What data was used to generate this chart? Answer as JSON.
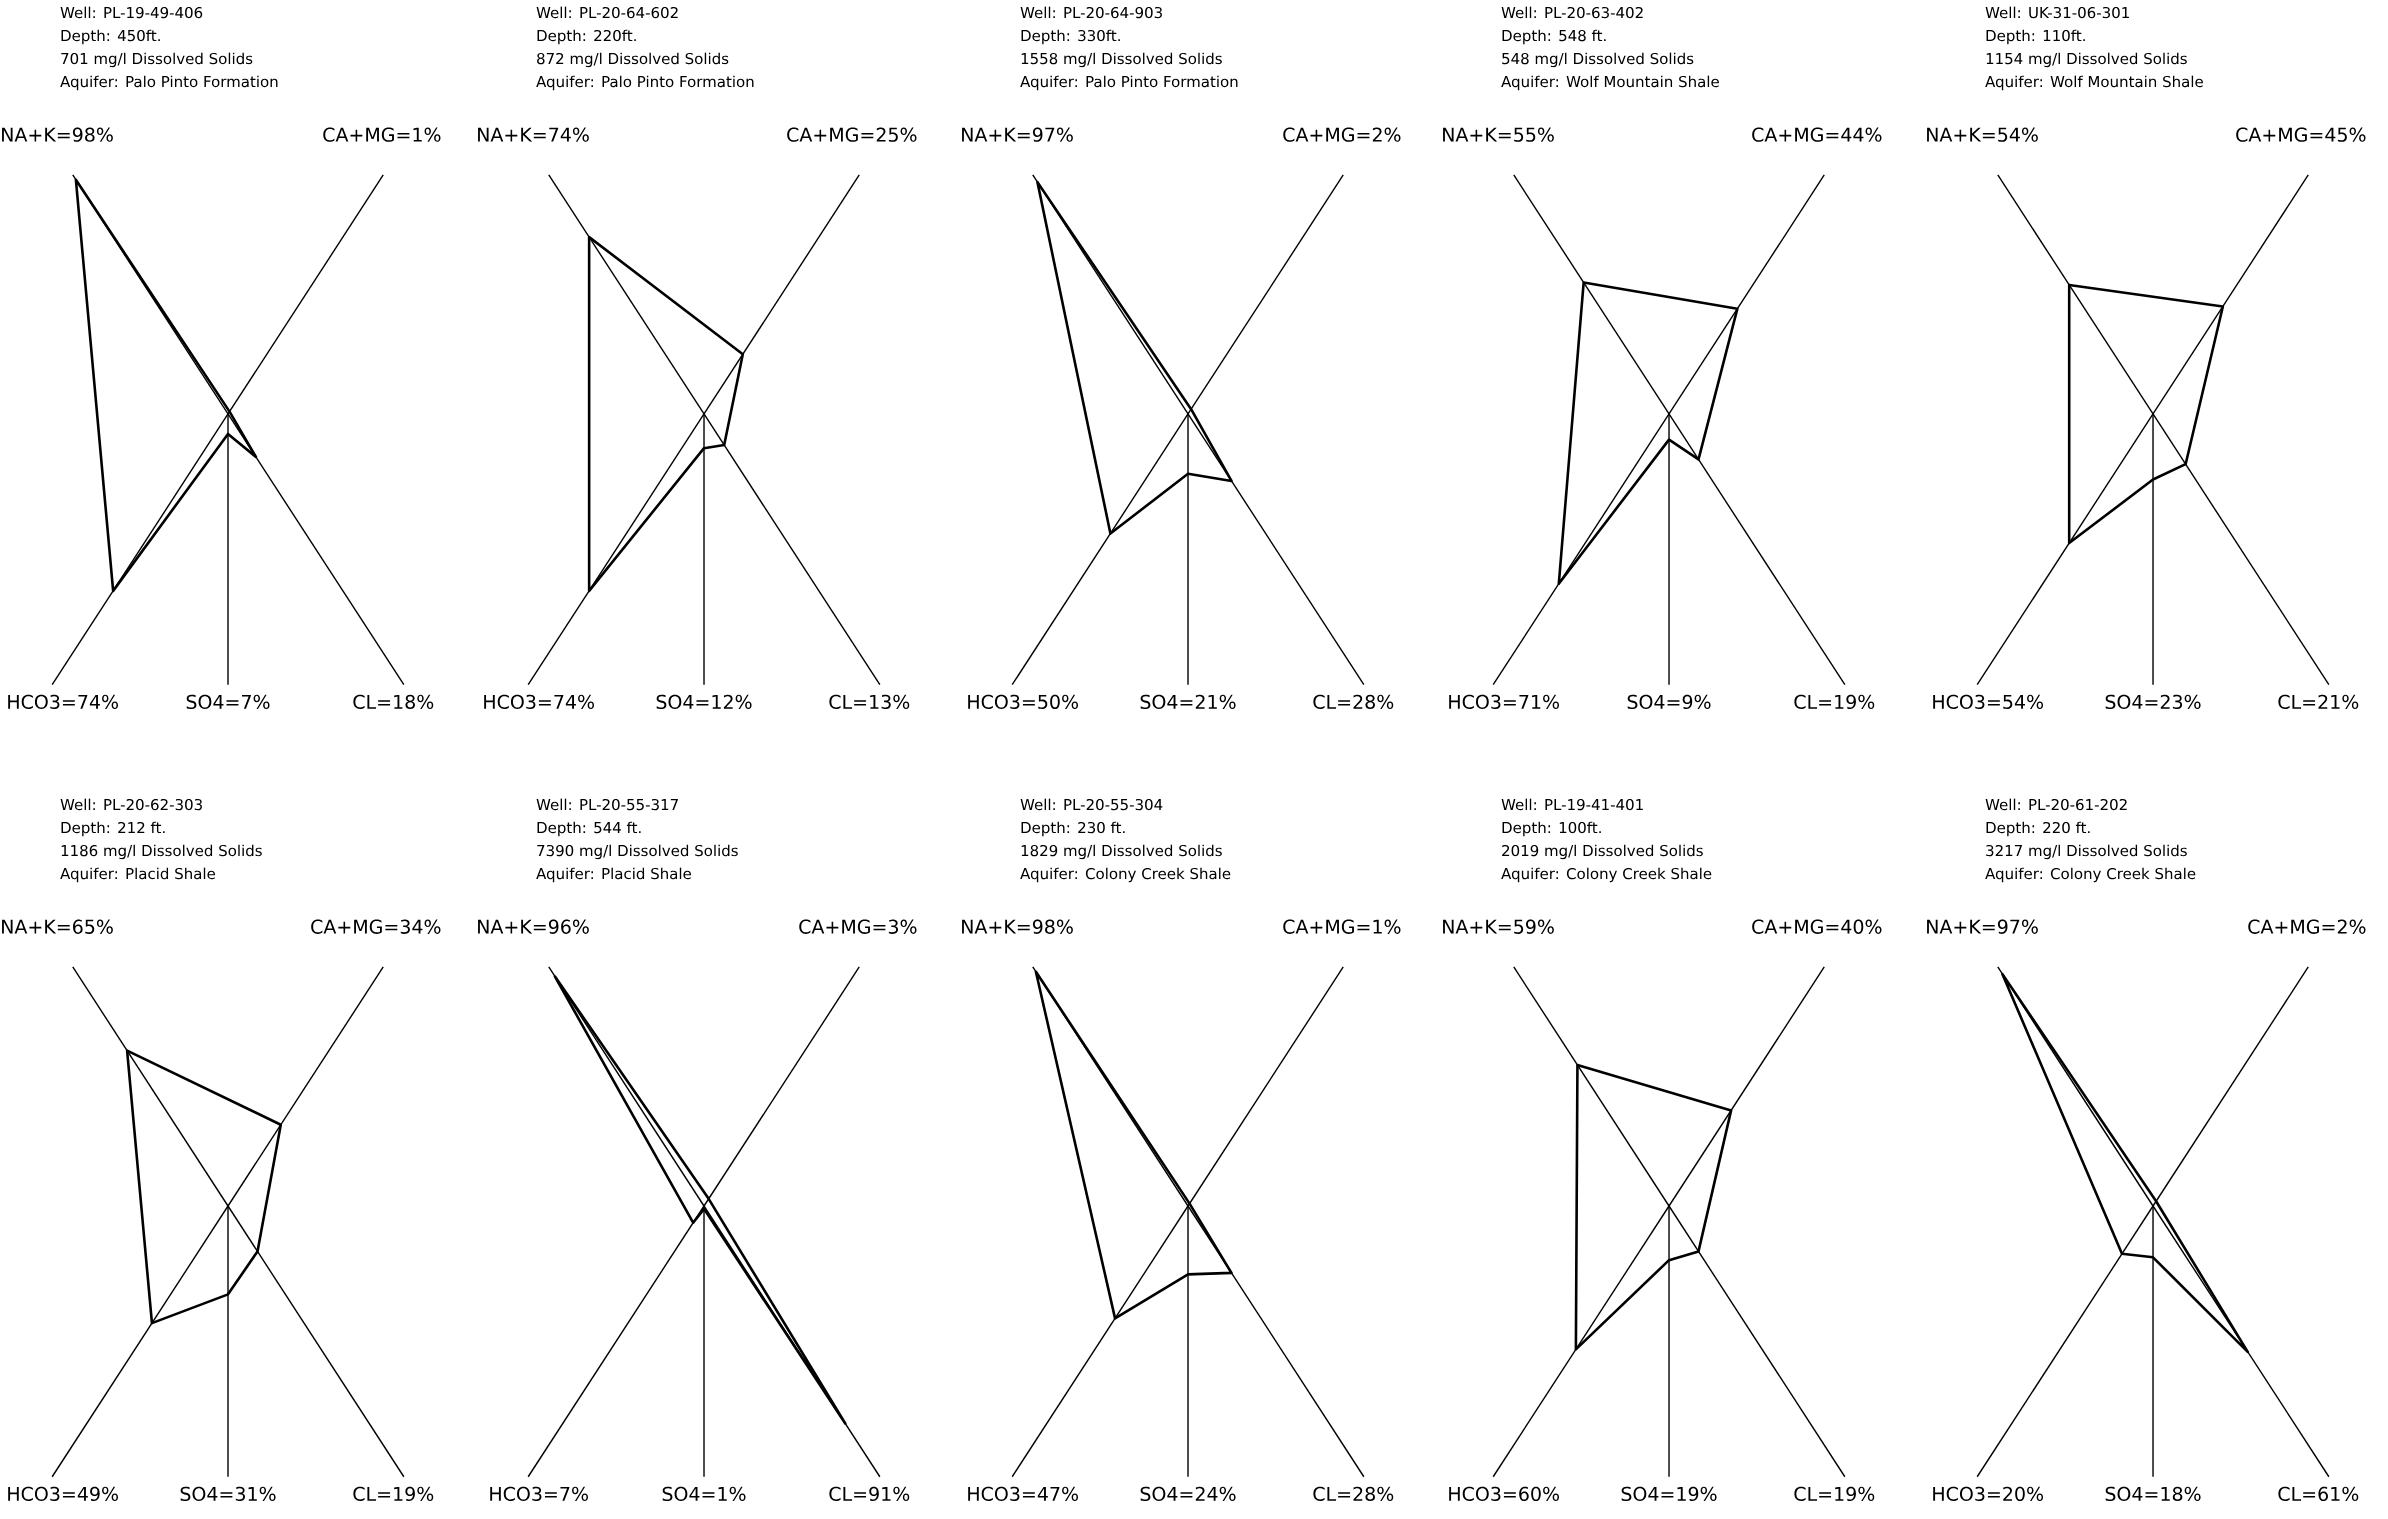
{
  "chart_data": [
    {
      "type": "other",
      "title": "Well: PL-19-49-406",
      "subtitle": "Depth: 450ft.",
      "annotations": [
        "701 mg/l Dissolved Solids",
        "Aquifer: Palo Pinto Formation"
      ],
      "categories": [
        "CA+MG=",
        "CL=",
        "SO4=",
        "HCO3=",
        "NA+K="
      ],
      "series": [
        {
          "color": "#000000",
          "values": [
            1,
            18,
            7,
            74,
            98
          ],
          "value_labels": [
            "1%",
            "18%",
            "7%",
            "74%",
            "98%"
          ]
        }
      ]
    },
    {
      "type": "other",
      "title": "Well: PL-20-64-602",
      "subtitle": "Depth: 220ft.",
      "annotations": [
        "872 mg/l Dissolved Solids",
        "Aquifer: Palo Pinto Formation"
      ],
      "categories": [
        "CA+MG=",
        "CL=",
        "SO4=",
        "HCO3=",
        "NA+K="
      ],
      "series": [
        {
          "color": "#000000",
          "values": [
            25,
            13,
            12,
            74,
            74
          ],
          "value_labels": [
            "25%",
            "13%",
            "12%",
            "74%",
            "74%"
          ]
        }
      ]
    },
    {
      "type": "other",
      "title": "Well: PL-20-64-903",
      "subtitle": "Depth: 330ft.",
      "annotations": [
        "1558 mg/l Dissolved Solids",
        "Aquifer: Palo Pinto Formation"
      ],
      "categories": [
        "CA+MG=",
        "CL=",
        "SO4=",
        "HCO3=",
        "NA+K="
      ],
      "series": [
        {
          "color": "#000000",
          "values": [
            2,
            28,
            21,
            50,
            97
          ],
          "value_labels": [
            "2%",
            "28%",
            "21%",
            "50%",
            "97%"
          ]
        }
      ]
    },
    {
      "type": "other",
      "title": "Well: PL-20-63-402",
      "subtitle": "Depth: 548 ft.",
      "annotations": [
        "548 mg/l Dissolved Solids",
        "Aquifer: Wolf Mountain Shale"
      ],
      "categories": [
        "CA+MG=",
        "CL=",
        "SO4=",
        "HCO3=",
        "NA+K="
      ],
      "series": [
        {
          "color": "#000000",
          "values": [
            44,
            19,
            9,
            71,
            55
          ],
          "value_labels": [
            "44%",
            "19%",
            "9%",
            "71%",
            "55%"
          ]
        }
      ]
    },
    {
      "type": "other",
      "title": "Well: UK-31-06-301",
      "subtitle": "Depth: 110ft.",
      "annotations": [
        "1154 mg/l Dissolved Solids",
        "Aquifer: Wolf Mountain Shale"
      ],
      "categories": [
        "CA+MG=",
        "CL=",
        "SO4=",
        "HCO3=",
        "NA+K="
      ],
      "series": [
        {
          "color": "#000000",
          "values": [
            45,
            21,
            23,
            54,
            54
          ],
          "value_labels": [
            "45%",
            "21%",
            "23%",
            "54%",
            "54%"
          ]
        }
      ]
    },
    {
      "type": "other",
      "title": "Well: PL-20-62-303",
      "subtitle": "Depth: 212 ft.",
      "annotations": [
        "1186 mg/l Dissolved Solids",
        "Aquifer: Placid Shale"
      ],
      "categories": [
        "CA+MG=",
        "CL=",
        "SO4=",
        "HCO3=",
        "NA+K="
      ],
      "series": [
        {
          "color": "#000000",
          "values": [
            34,
            19,
            31,
            49,
            65
          ],
          "value_labels": [
            "34%",
            "19%",
            "31%",
            "49%",
            "65%"
          ]
        }
      ]
    },
    {
      "type": "other",
      "title": "Well: PL-20-55-317",
      "subtitle": "Depth: 544 ft.",
      "annotations": [
        "7390 mg/l Dissolved Solids",
        "Aquifer: Placid Shale"
      ],
      "categories": [
        "CA+MG=",
        "CL=",
        "SO4=",
        "HCO3=",
        "NA+K="
      ],
      "series": [
        {
          "color": "#000000",
          "values": [
            3,
            91,
            1,
            7,
            96
          ],
          "value_labels": [
            "3%",
            "91%",
            "1%",
            "7%",
            "96%"
          ]
        }
      ]
    },
    {
      "type": "other",
      "title": "Well: PL-20-55-304",
      "subtitle": "Depth: 230 ft.",
      "annotations": [
        "1829 mg/l Dissolved Solids",
        "Aquifer: Colony Creek Shale"
      ],
      "categories": [
        "CA+MG=",
        "CL=",
        "SO4=",
        "HCO3=",
        "NA+K="
      ],
      "series": [
        {
          "color": "#000000",
          "values": [
            1,
            28,
            24,
            47,
            98
          ],
          "value_labels": [
            "1%",
            "28%",
            "24%",
            "47%",
            "98%"
          ]
        }
      ]
    },
    {
      "type": "other",
      "title": "Well: PL-19-41-401",
      "subtitle": "Depth: 100ft.",
      "annotations": [
        "2019 mg/l Dissolved Solids",
        "Aquifer: Colony Creek Shale"
      ],
      "categories": [
        "CA+MG=",
        "CL=",
        "SO4=",
        "HCO3=",
        "NA+K="
      ],
      "series": [
        {
          "color": "#000000",
          "values": [
            40,
            19,
            19,
            60,
            59
          ],
          "value_labels": [
            "40%",
            "19%",
            "19%",
            "60%",
            "59%"
          ]
        }
      ]
    },
    {
      "type": "other",
      "title": "Well: PL-20-61-202",
      "subtitle": "Depth: 220 ft.",
      "annotations": [
        "3217 mg/l Dissolved Solids",
        "Aquifer: Colony Creek Shale"
      ],
      "categories": [
        "CA+MG=",
        "CL=",
        "SO4=",
        "HCO3=",
        "NA+K="
      ],
      "series": [
        {
          "color": "#000000",
          "values": [
            2,
            61,
            18,
            20,
            97
          ],
          "value_labels": [
            "2%",
            "61%",
            "18%",
            "20%",
            "97%"
          ]
        }
      ]
    }
  ]
}
